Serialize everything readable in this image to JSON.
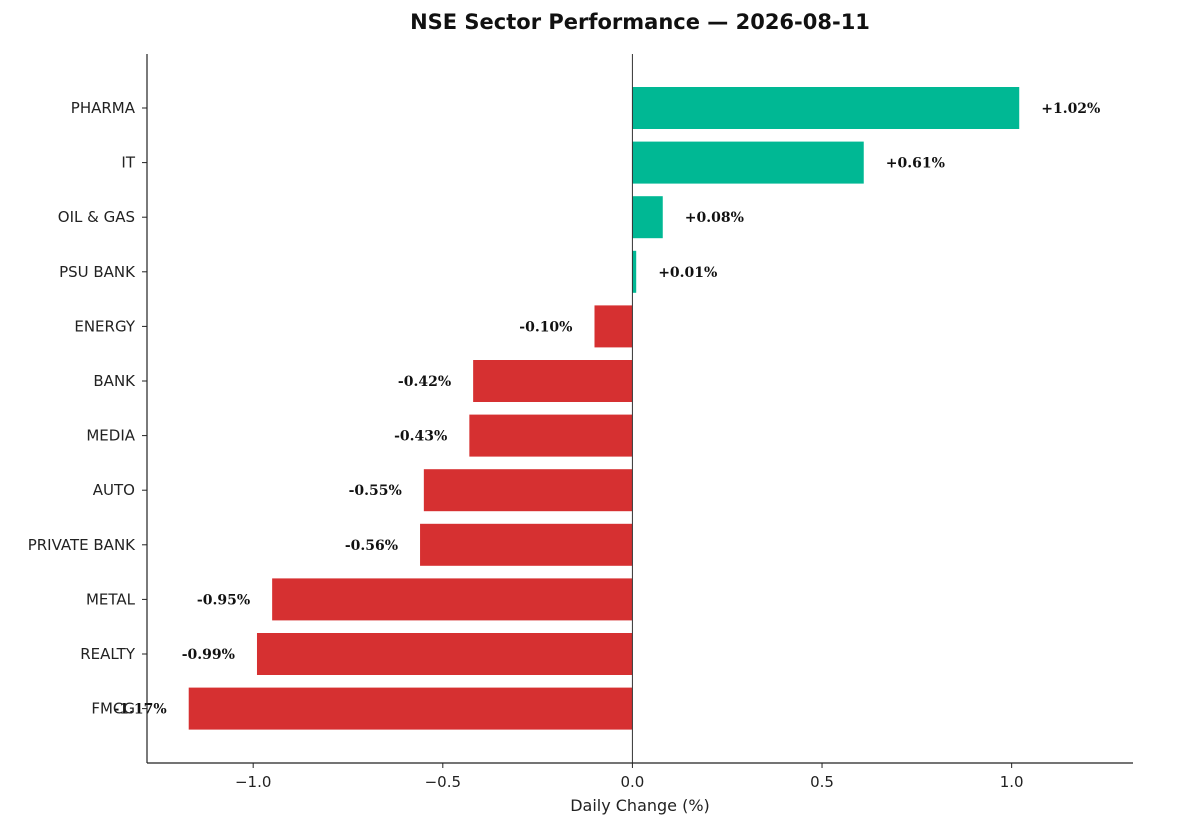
{
  "chart_data": {
    "type": "bar",
    "orientation": "horizontal",
    "title": "NSE Sector Performance — 2026-08-11",
    "xlabel": "Daily Change (%)",
    "ylabel": "",
    "xlim": [
      -1.28,
      1.32
    ],
    "x_ticks": [
      -1.0,
      -0.5,
      0.0,
      0.5,
      1.0
    ],
    "x_tick_labels": [
      "−1.0",
      "−0.5",
      "0.0",
      "0.5",
      "1.0"
    ],
    "grid": false,
    "categories": [
      "PHARMA",
      "IT",
      "OIL & GAS",
      "PSU BANK",
      "ENERGY",
      "BANK",
      "MEDIA",
      "AUTO",
      "PRIVATE BANK",
      "METAL",
      "REALTY",
      "FMCG"
    ],
    "values": [
      1.02,
      0.61,
      0.08,
      0.01,
      -0.1,
      -0.42,
      -0.43,
      -0.55,
      -0.56,
      -0.95,
      -0.99,
      -1.17
    ],
    "data_labels": [
      "+1.02%",
      "+0.61%",
      "+0.08%",
      "+0.01%",
      "-0.10%",
      "-0.42%",
      "-0.43%",
      "-0.55%",
      "-0.56%",
      "-0.95%",
      "-0.99%",
      "-1.17%"
    ],
    "colors": {
      "positive": "#00b894",
      "negative": "#d63031"
    }
  }
}
